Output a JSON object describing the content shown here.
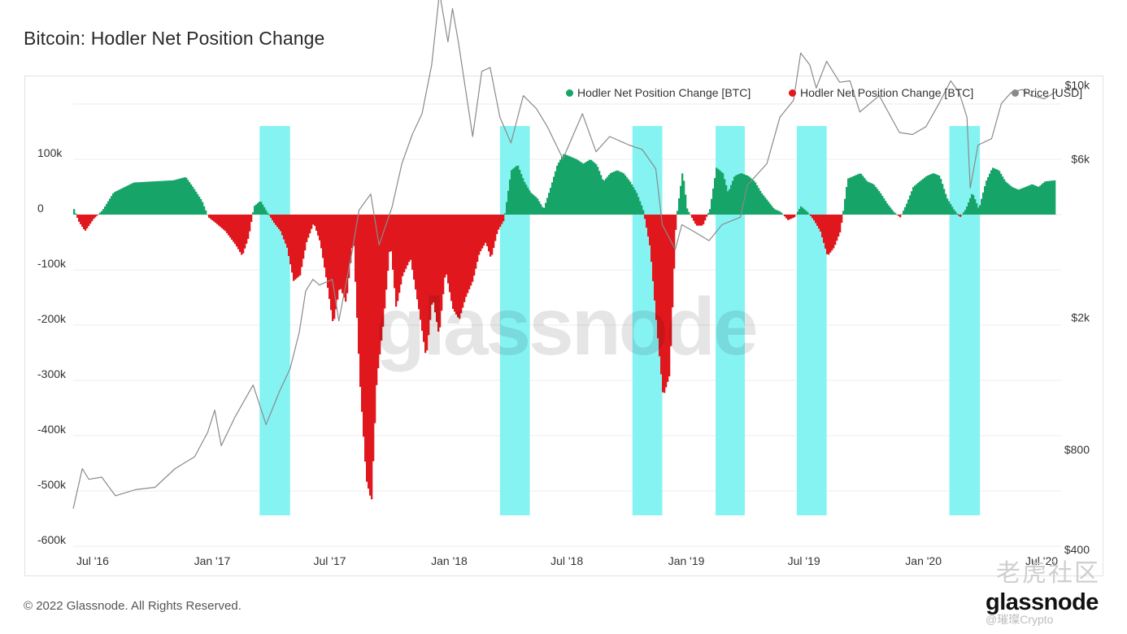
{
  "title": "Bitcoin: Hodler Net Position Change",
  "legend": [
    {
      "label": "Hodler Net Position Change [BTC]",
      "color": "#16a468",
      "icon": "dot"
    },
    {
      "label": "Hodler Net Position Change [BTC]",
      "color": "#e0181e",
      "icon": "dot"
    },
    {
      "label": "Price [USD]",
      "color": "#8a8a8a",
      "icon": "dot"
    }
  ],
  "footer": {
    "copyright": "© 2022 Glassnode. All Rights Reserved.",
    "brand": "glassnode",
    "background_watermark": "glassnode",
    "watermark_cn": "老虎社区",
    "watermark_user": "@璀璨Crypto"
  },
  "chart_data": {
    "type": "area",
    "x_tick_labels": [
      "Jul '16",
      "Jan '17",
      "Jul '17",
      "Jan '18",
      "Jul '18",
      "Jan '19",
      "Jul '19",
      "Jan '20",
      "Jul '20"
    ],
    "y_left": {
      "unit": "BTC",
      "ticks": [
        100000,
        0,
        -100000,
        -200000,
        -300000,
        -400000,
        -500000,
        -600000
      ],
      "tick_labels": [
        "100k",
        "0",
        "-100k",
        "-200k",
        "-300k",
        "-400k",
        "-500k",
        "-600k"
      ],
      "range": [
        -600000,
        200000
      ]
    },
    "y_right": {
      "unit": "USD",
      "scale": "log",
      "ticks": [
        10000,
        6000,
        2000,
        800,
        400
      ],
      "tick_labels": [
        "$10k",
        "$6k",
        "$2k",
        "$800",
        "$400"
      ]
    },
    "x_range": [
      "2016-06-01",
      "2020-07-31"
    ],
    "grid": "horizontal",
    "legend_position": "top-right",
    "colors": {
      "positive": "#16a468",
      "negative": "#e0181e",
      "price": "#8a8a8a",
      "highlight": "#7ff2f2"
    },
    "highlight_ranges": [
      [
        "2017-03-15",
        "2017-05-01"
      ],
      [
        "2018-03-20",
        "2018-05-05"
      ],
      [
        "2018-10-10",
        "2018-11-25"
      ],
      [
        "2019-02-15",
        "2019-04-01"
      ],
      [
        "2019-06-20",
        "2019-08-05"
      ],
      [
        "2020-02-10",
        "2020-03-28"
      ]
    ],
    "series": [
      {
        "name": "Hodler Net Position Change [BTC]",
        "role": "net_position_change",
        "points": [
          [
            "2016-06-01",
            10000
          ],
          [
            "2016-06-08",
            -12000
          ],
          [
            "2016-06-18",
            -30000
          ],
          [
            "2016-07-01",
            -8000
          ],
          [
            "2016-07-15",
            8000
          ],
          [
            "2016-08-01",
            40000
          ],
          [
            "2016-09-01",
            58000
          ],
          [
            "2016-10-01",
            60000
          ],
          [
            "2016-11-01",
            62000
          ],
          [
            "2016-11-20",
            68000
          ],
          [
            "2016-12-01",
            50000
          ],
          [
            "2016-12-15",
            25000
          ],
          [
            "2016-12-25",
            -5000
          ],
          [
            "2017-01-05",
            -15000
          ],
          [
            "2017-01-20",
            -30000
          ],
          [
            "2017-02-05",
            -55000
          ],
          [
            "2017-02-15",
            -75000
          ],
          [
            "2017-02-25",
            -40000
          ],
          [
            "2017-03-05",
            15000
          ],
          [
            "2017-03-15",
            25000
          ],
          [
            "2017-03-25",
            5000
          ],
          [
            "2017-04-05",
            -15000
          ],
          [
            "2017-04-15",
            -30000
          ],
          [
            "2017-04-25",
            -60000
          ],
          [
            "2017-05-05",
            -120000
          ],
          [
            "2017-05-15",
            -110000
          ],
          [
            "2017-05-25",
            -50000
          ],
          [
            "2017-06-05",
            -15000
          ],
          [
            "2017-06-15",
            -50000
          ],
          [
            "2017-06-25",
            -120000
          ],
          [
            "2017-07-05",
            -200000
          ],
          [
            "2017-07-15",
            -130000
          ],
          [
            "2017-07-25",
            -160000
          ],
          [
            "2017-08-05",
            -40000
          ],
          [
            "2017-08-15",
            -300000
          ],
          [
            "2017-08-25",
            -480000
          ],
          [
            "2017-09-02",
            -520000
          ],
          [
            "2017-09-10",
            -300000
          ],
          [
            "2017-09-20",
            -200000
          ],
          [
            "2017-10-01",
            -50000
          ],
          [
            "2017-10-10",
            -170000
          ],
          [
            "2017-10-20",
            -110000
          ],
          [
            "2017-11-01",
            -80000
          ],
          [
            "2017-11-15",
            -180000
          ],
          [
            "2017-11-25",
            -260000
          ],
          [
            "2017-12-05",
            -150000
          ],
          [
            "2017-12-15",
            -220000
          ],
          [
            "2017-12-25",
            -100000
          ],
          [
            "2018-01-05",
            -170000
          ],
          [
            "2018-01-15",
            -190000
          ],
          [
            "2018-01-25",
            -150000
          ],
          [
            "2018-02-05",
            -120000
          ],
          [
            "2018-02-15",
            -70000
          ],
          [
            "2018-02-25",
            -50000
          ],
          [
            "2018-03-05",
            -80000
          ],
          [
            "2018-03-15",
            -30000
          ],
          [
            "2018-03-25",
            -10000
          ],
          [
            "2018-04-05",
            80000
          ],
          [
            "2018-04-15",
            90000
          ],
          [
            "2018-04-25",
            60000
          ],
          [
            "2018-05-05",
            40000
          ],
          [
            "2018-05-15",
            30000
          ],
          [
            "2018-05-25",
            10000
          ],
          [
            "2018-06-05",
            50000
          ],
          [
            "2018-06-15",
            90000
          ],
          [
            "2018-06-25",
            110000
          ],
          [
            "2018-07-05",
            105000
          ],
          [
            "2018-07-15",
            100000
          ],
          [
            "2018-07-25",
            92000
          ],
          [
            "2018-08-05",
            100000
          ],
          [
            "2018-08-15",
            90000
          ],
          [
            "2018-08-25",
            60000
          ],
          [
            "2018-09-05",
            75000
          ],
          [
            "2018-09-15",
            80000
          ],
          [
            "2018-09-25",
            75000
          ],
          [
            "2018-10-05",
            60000
          ],
          [
            "2018-10-15",
            40000
          ],
          [
            "2018-10-25",
            10000
          ],
          [
            "2018-11-05",
            -60000
          ],
          [
            "2018-11-15",
            -200000
          ],
          [
            "2018-11-25",
            -330000
          ],
          [
            "2018-12-05",
            -290000
          ],
          [
            "2018-12-15",
            -10000
          ],
          [
            "2018-12-25",
            80000
          ],
          [
            "2019-01-01",
            10000
          ],
          [
            "2019-01-15",
            -20000
          ],
          [
            "2019-01-25",
            -20000
          ],
          [
            "2019-02-05",
            10000
          ],
          [
            "2019-02-15",
            85000
          ],
          [
            "2019-02-25",
            75000
          ],
          [
            "2019-03-05",
            40000
          ],
          [
            "2019-03-15",
            70000
          ],
          [
            "2019-03-25",
            75000
          ],
          [
            "2019-04-05",
            70000
          ],
          [
            "2019-04-15",
            60000
          ],
          [
            "2019-04-25",
            40000
          ],
          [
            "2019-05-05",
            25000
          ],
          [
            "2019-05-15",
            10000
          ],
          [
            "2019-05-25",
            5000
          ],
          [
            "2019-06-05",
            -10000
          ],
          [
            "2019-06-15",
            -5000
          ],
          [
            "2019-06-25",
            15000
          ],
          [
            "2019-07-05",
            5000
          ],
          [
            "2019-07-15",
            -10000
          ],
          [
            "2019-07-25",
            -30000
          ],
          [
            "2019-08-05",
            -75000
          ],
          [
            "2019-08-15",
            -60000
          ],
          [
            "2019-08-25",
            -30000
          ],
          [
            "2019-09-05",
            65000
          ],
          [
            "2019-09-15",
            70000
          ],
          [
            "2019-09-25",
            75000
          ],
          [
            "2019-10-05",
            60000
          ],
          [
            "2019-10-15",
            55000
          ],
          [
            "2019-10-25",
            40000
          ],
          [
            "2019-11-05",
            20000
          ],
          [
            "2019-11-15",
            5000
          ],
          [
            "2019-11-25",
            -5000
          ],
          [
            "2019-12-05",
            20000
          ],
          [
            "2019-12-15",
            50000
          ],
          [
            "2019-12-25",
            60000
          ],
          [
            "2020-01-05",
            70000
          ],
          [
            "2020-01-15",
            75000
          ],
          [
            "2020-01-25",
            70000
          ],
          [
            "2020-02-05",
            30000
          ],
          [
            "2020-02-15",
            10000
          ],
          [
            "2020-02-25",
            -5000
          ],
          [
            "2020-03-05",
            10000
          ],
          [
            "2020-03-15",
            40000
          ],
          [
            "2020-03-25",
            10000
          ],
          [
            "2020-04-05",
            60000
          ],
          [
            "2020-04-15",
            85000
          ],
          [
            "2020-04-25",
            80000
          ],
          [
            "2020-05-05",
            60000
          ],
          [
            "2020-05-15",
            50000
          ],
          [
            "2020-05-25",
            45000
          ],
          [
            "2020-06-05",
            50000
          ],
          [
            "2020-06-15",
            55000
          ],
          [
            "2020-06-25",
            50000
          ],
          [
            "2020-07-05",
            60000
          ],
          [
            "2020-07-20",
            62000
          ]
        ]
      },
      {
        "name": "Price [USD]",
        "role": "price",
        "points": [
          [
            "2016-06-01",
            530
          ],
          [
            "2016-06-15",
            700
          ],
          [
            "2016-06-25",
            650
          ],
          [
            "2016-07-15",
            660
          ],
          [
            "2016-08-05",
            580
          ],
          [
            "2016-09-05",
            605
          ],
          [
            "2016-10-05",
            615
          ],
          [
            "2016-11-05",
            700
          ],
          [
            "2016-12-05",
            760
          ],
          [
            "2016-12-25",
            900
          ],
          [
            "2017-01-05",
            1050
          ],
          [
            "2017-01-15",
            820
          ],
          [
            "2017-02-05",
            1000
          ],
          [
            "2017-03-05",
            1250
          ],
          [
            "2017-03-25",
            950
          ],
          [
            "2017-04-15",
            1200
          ],
          [
            "2017-05-01",
            1400
          ],
          [
            "2017-05-15",
            1800
          ],
          [
            "2017-05-25",
            2400
          ],
          [
            "2017-06-05",
            2600
          ],
          [
            "2017-06-15",
            2500
          ],
          [
            "2017-07-05",
            2600
          ],
          [
            "2017-07-15",
            1950
          ],
          [
            "2017-08-05",
            3200
          ],
          [
            "2017-08-15",
            4200
          ],
          [
            "2017-09-02",
            4700
          ],
          [
            "2017-09-15",
            3300
          ],
          [
            "2017-10-05",
            4300
          ],
          [
            "2017-10-20",
            5800
          ],
          [
            "2017-11-05",
            7100
          ],
          [
            "2017-11-20",
            8200
          ],
          [
            "2017-12-05",
            11500
          ],
          [
            "2017-12-17",
            19000
          ],
          [
            "2017-12-30",
            13500
          ],
          [
            "2018-01-06",
            17000
          ],
          [
            "2018-01-15",
            13500
          ],
          [
            "2018-02-06",
            7000
          ],
          [
            "2018-02-20",
            11000
          ],
          [
            "2018-03-05",
            11300
          ],
          [
            "2018-03-20",
            8000
          ],
          [
            "2018-04-06",
            6700
          ],
          [
            "2018-04-25",
            9300
          ],
          [
            "2018-05-15",
            8500
          ],
          [
            "2018-06-01",
            7500
          ],
          [
            "2018-06-25",
            6000
          ],
          [
            "2018-07-25",
            8200
          ],
          [
            "2018-08-15",
            6300
          ],
          [
            "2018-09-05",
            7000
          ],
          [
            "2018-10-05",
            6600
          ],
          [
            "2018-10-25",
            6400
          ],
          [
            "2018-11-15",
            5600
          ],
          [
            "2018-11-25",
            3800
          ],
          [
            "2018-12-15",
            3200
          ],
          [
            "2018-12-25",
            3800
          ],
          [
            "2019-01-15",
            3600
          ],
          [
            "2019-02-05",
            3400
          ],
          [
            "2019-02-25",
            3800
          ],
          [
            "2019-03-25",
            4000
          ],
          [
            "2019-04-05",
            5000
          ],
          [
            "2019-05-05",
            5800
          ],
          [
            "2019-05-25",
            8000
          ],
          [
            "2019-06-15",
            9000
          ],
          [
            "2019-06-26",
            12500
          ],
          [
            "2019-07-10",
            11500
          ],
          [
            "2019-07-20",
            9800
          ],
          [
            "2019-08-05",
            11800
          ],
          [
            "2019-08-25",
            10200
          ],
          [
            "2019-09-10",
            10300
          ],
          [
            "2019-09-25",
            8300
          ],
          [
            "2019-10-25",
            9300
          ],
          [
            "2019-11-25",
            7200
          ],
          [
            "2019-12-15",
            7100
          ],
          [
            "2020-01-05",
            7500
          ],
          [
            "2020-01-25",
            8800
          ],
          [
            "2020-02-12",
            10300
          ],
          [
            "2020-02-25",
            9500
          ],
          [
            "2020-03-08",
            8000
          ],
          [
            "2020-03-13",
            4900
          ],
          [
            "2020-03-25",
            6600
          ],
          [
            "2020-04-15",
            6900
          ],
          [
            "2020-04-30",
            8800
          ],
          [
            "2020-05-15",
            9500
          ],
          [
            "2020-06-01",
            9700
          ],
          [
            "2020-06-15",
            9300
          ],
          [
            "2020-07-05",
            9100
          ],
          [
            "2020-07-25",
            9600
          ]
        ]
      }
    ]
  }
}
